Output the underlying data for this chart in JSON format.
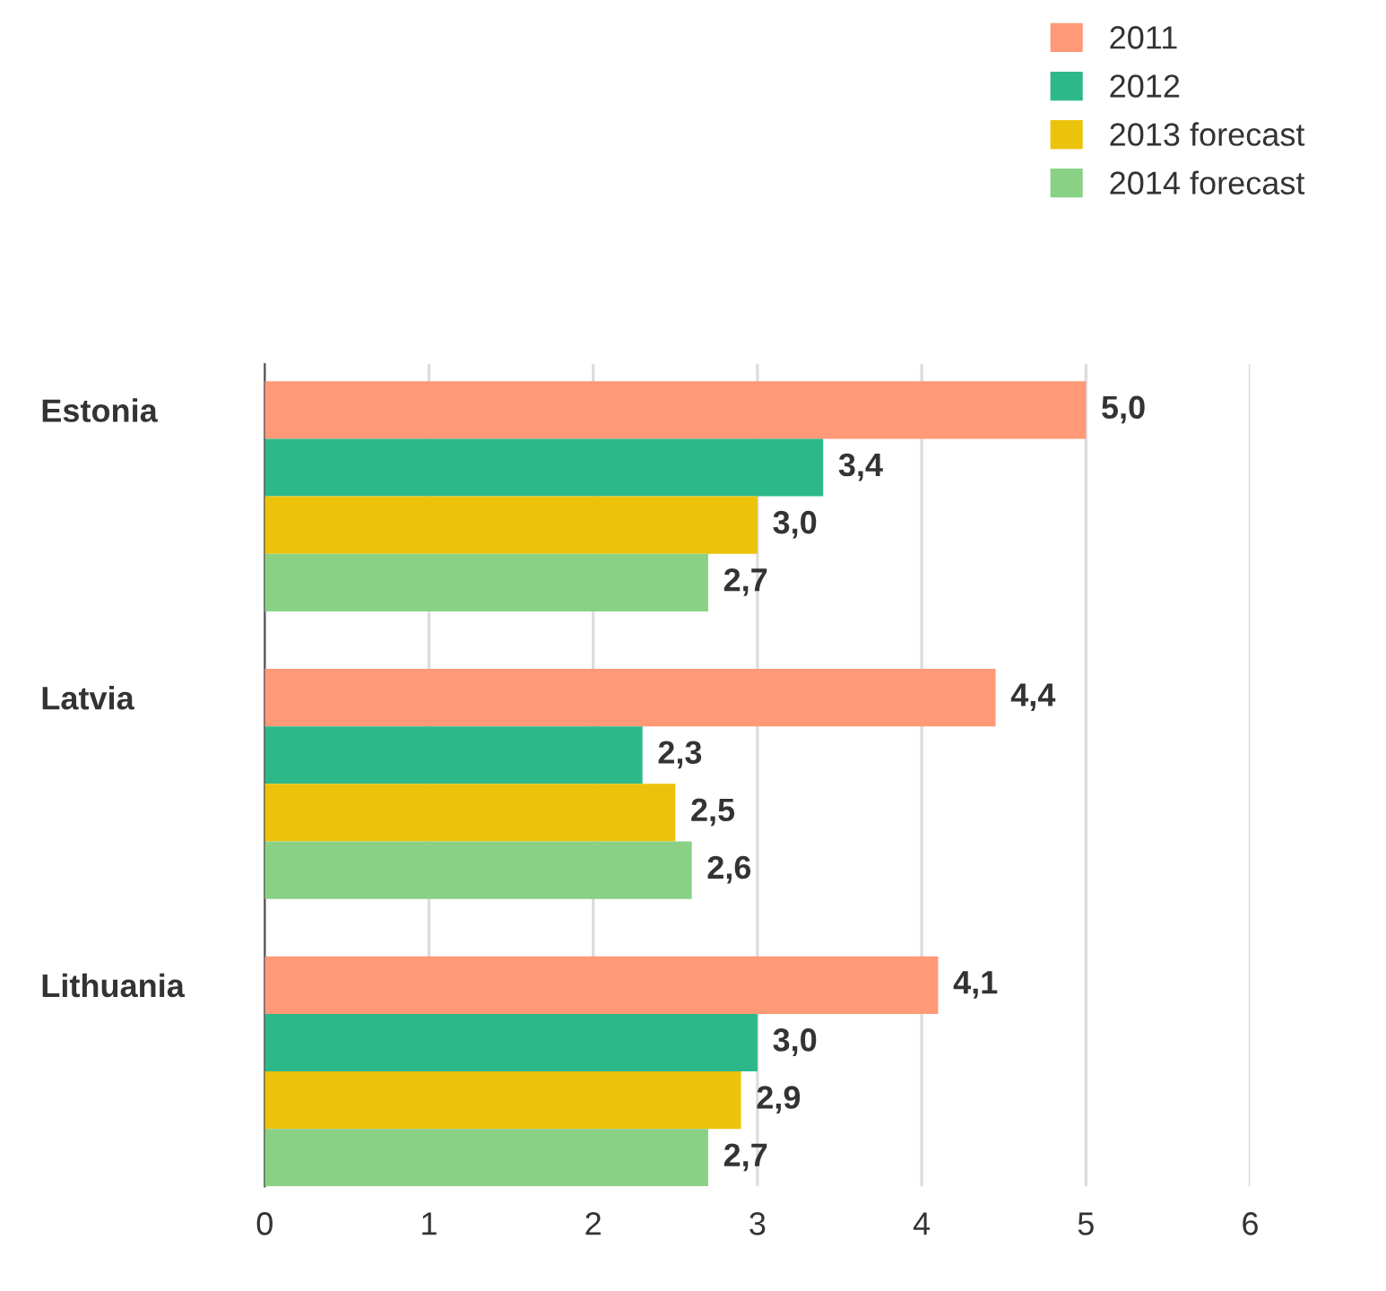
{
  "chart_data": {
    "type": "bar",
    "orientation": "horizontal",
    "categories": [
      "Estonia",
      "Latvia",
      "Lithuania"
    ],
    "series": [
      {
        "name": "2011",
        "color": "#ff9977",
        "values": [
          5.0,
          4.45,
          4.1
        ],
        "value_labels": [
          "5,0",
          "4,4",
          "4,1"
        ]
      },
      {
        "name": "2012",
        "color": "#2db88a",
        "values": [
          3.4,
          2.3,
          3.0
        ],
        "value_labels": [
          "3,4",
          "2,3",
          "3,0"
        ]
      },
      {
        "name": "2013 forecast",
        "color": "#ecc30b",
        "values": [
          3.0,
          2.5,
          2.9
        ],
        "value_labels": [
          "3,0",
          "2,5",
          "2,9"
        ]
      },
      {
        "name": "2014 forecast",
        "color": "#89d185",
        "values": [
          2.7,
          2.6,
          2.7
        ],
        "value_labels": [
          "2,7",
          "2,6",
          "2,7"
        ]
      }
    ],
    "xlim": [
      0,
      6
    ],
    "xticks": [
      0,
      1,
      2,
      3,
      4,
      5,
      6
    ],
    "grid": "x",
    "legend": "top right"
  }
}
